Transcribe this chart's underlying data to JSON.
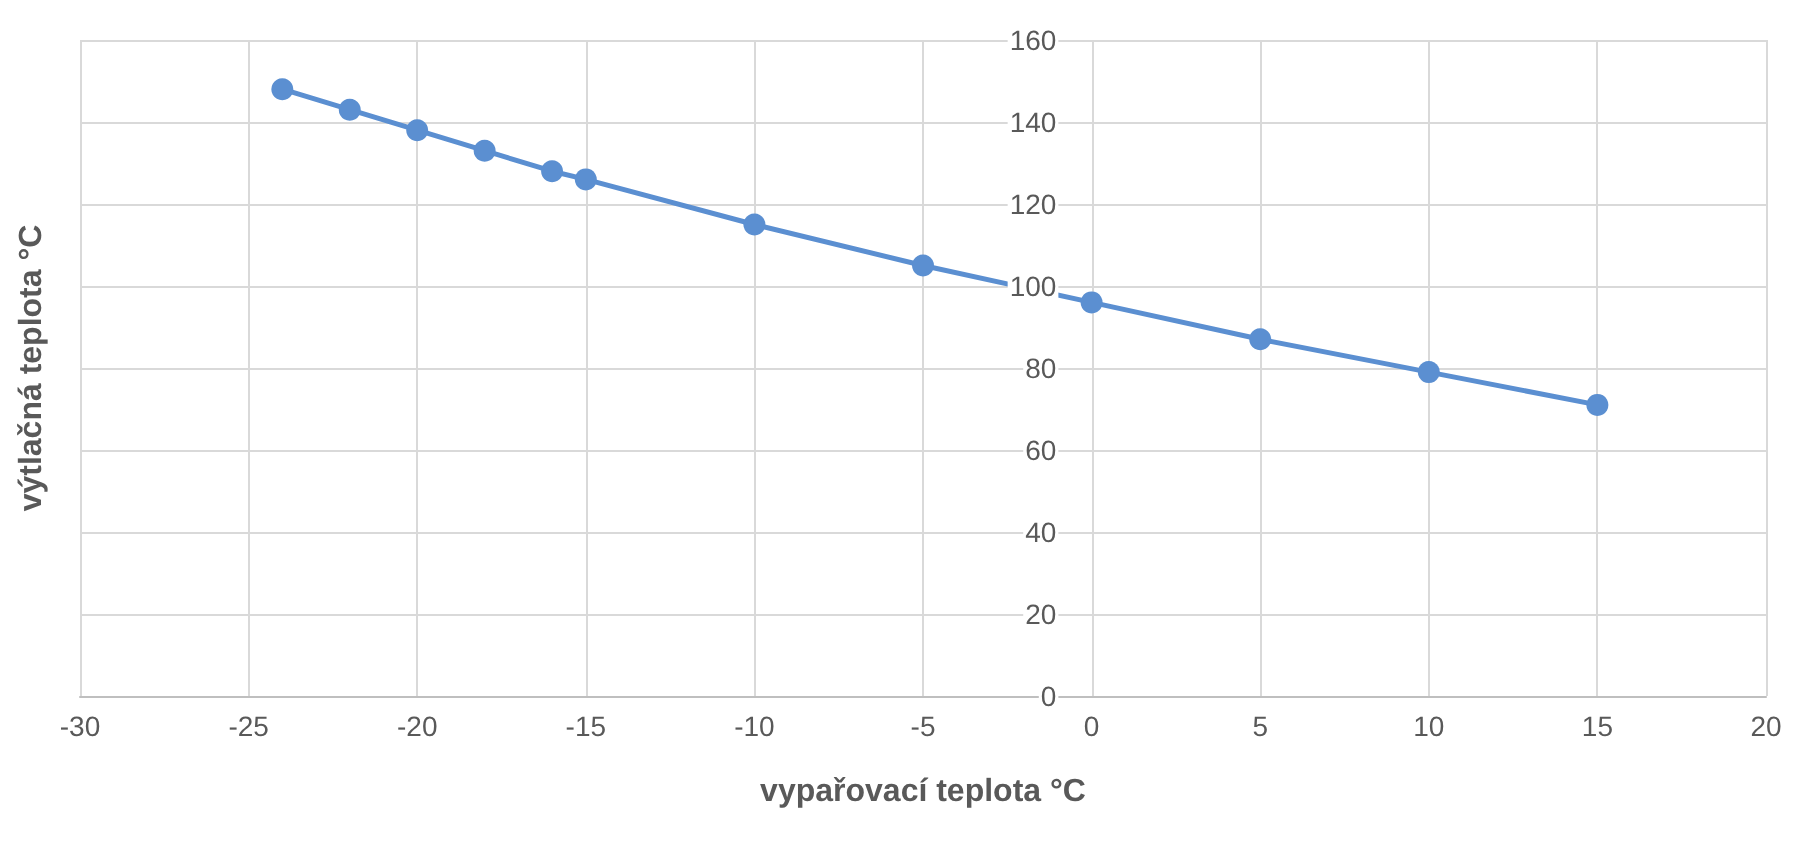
{
  "chart_data": {
    "type": "line",
    "xlabel": "vypařovací teplota °C",
    "ylabel": "výtlačná teplota °C",
    "x": [
      -24,
      -22,
      -20,
      -18,
      -16,
      -15,
      -10,
      -5,
      0,
      5,
      10,
      15
    ],
    "series": [
      {
        "color": "#5b8fd1",
        "values": [
          148,
          143,
          138,
          133,
          128,
          126,
          115,
          105,
          96,
          87,
          79,
          71
        ]
      }
    ],
    "xlim": [
      -30,
      20
    ],
    "xticks": [
      -30,
      -25,
      -20,
      -15,
      -10,
      -5,
      0,
      5,
      10,
      15,
      20
    ],
    "ylim": [
      0,
      160
    ],
    "yticks": [
      0,
      20,
      40,
      60,
      80,
      100,
      120,
      140,
      160
    ],
    "grid": true,
    "marker": "circle",
    "line_style": "solid"
  }
}
